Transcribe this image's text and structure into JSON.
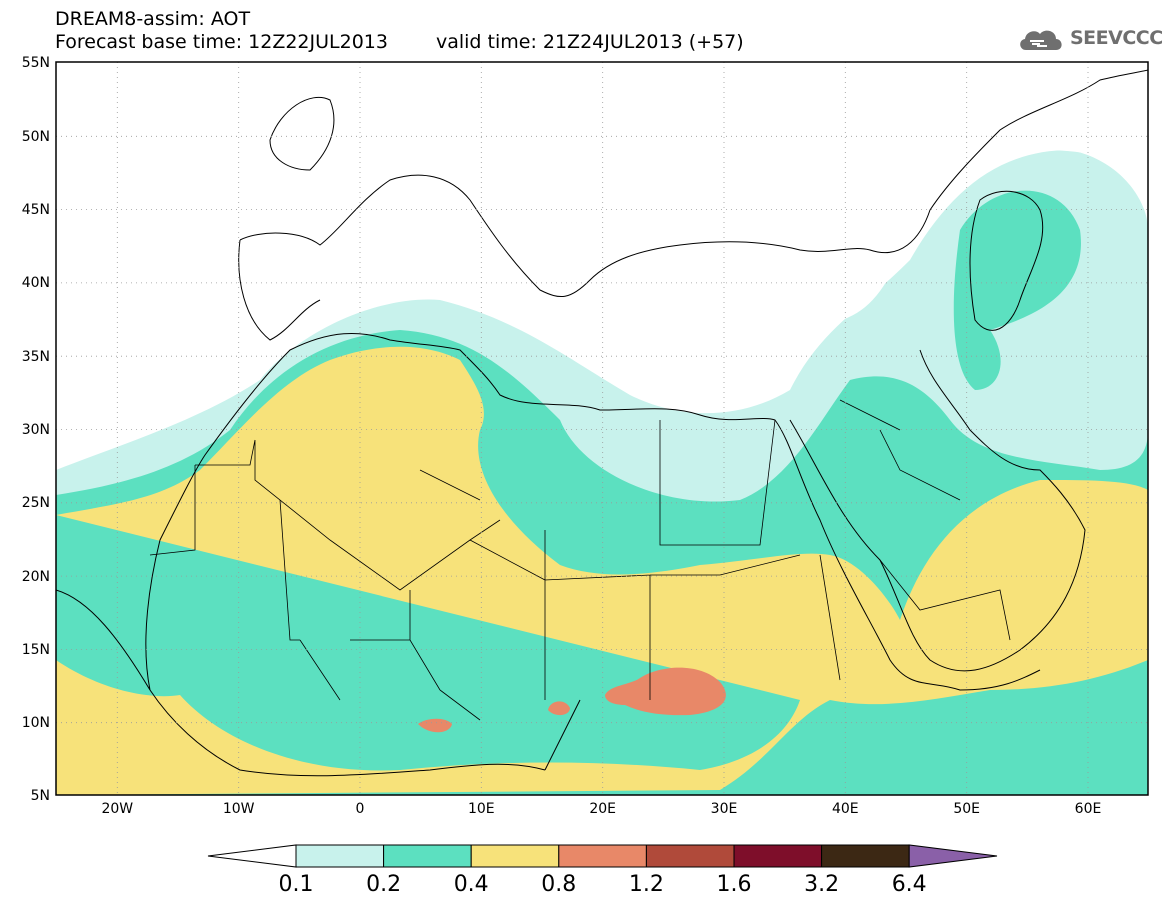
{
  "header": {
    "title_line1": "DREAM8-assim: AOT",
    "base_time": "Forecast base time: 12Z22JUL2013",
    "valid_time": "valid time: 21Z24JUL2013 (+57)"
  },
  "logo": {
    "text": "SEEVCCC",
    "icon": "cloud-icon"
  },
  "map": {
    "lat_labels": [
      "55N",
      "50N",
      "45N",
      "40N",
      "35N",
      "30N",
      "25N",
      "20N",
      "15N",
      "10N",
      "5N"
    ],
    "lon_labels": [
      "20W",
      "10W",
      "0",
      "10E",
      "20E",
      "30E",
      "40E",
      "50E",
      "60E"
    ]
  },
  "colorbar": {
    "labels": [
      "0.1",
      "0.2",
      "0.4",
      "0.8",
      "1.2",
      "1.6",
      "3.2",
      "6.4"
    ],
    "colors": [
      "#ffffff",
      "#c8f2ec",
      "#5ce0c0",
      "#f7e27a",
      "#e88868",
      "#b04a3a",
      "#7e0e2a",
      "#3c2814",
      "#8a60a8"
    ]
  }
}
